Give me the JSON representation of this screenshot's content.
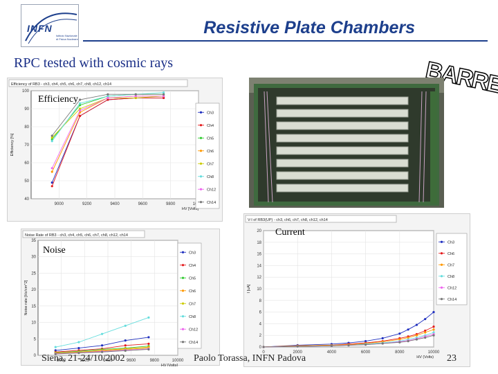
{
  "logo": {
    "text": "INFN",
    "subtext": "Istituto Nazionale di Fisica Nucleare"
  },
  "header": {
    "title": "Resistive Plate Chambers",
    "subtitle": "RPC tested with cosmic rays",
    "badge": "BARREL"
  },
  "labels": {
    "efficiency": "Efficiency",
    "noise": "Noise",
    "current": "Current"
  },
  "footer": {
    "left": "Siena, 21-24/10/2002",
    "center": "Paolo Torassa, INFN Padova",
    "page": "23"
  },
  "colors": {
    "title": "#1d3f8c",
    "subtitle": "#1a2f87"
  },
  "photo": {
    "icon": "rpc-chamber-stack-photo"
  },
  "chart_data": [
    {
      "type": "line",
      "title": "Efficiency of RB3 - ch3, ch4, ch5, ch6, ch7, ch8, ch12, ch14",
      "xlabel": "HV [Volts]",
      "ylabel": "Efficiency [%]",
      "xlim": [
        8800,
        10000
      ],
      "ylim": [
        40,
        100
      ],
      "xticks": [
        9000,
        9200,
        9400,
        9600,
        9800,
        10000
      ],
      "yticks": [
        40,
        50,
        60,
        70,
        80,
        90,
        100
      ],
      "x": [
        8950,
        9150,
        9350,
        9550,
        9750
      ],
      "series": [
        {
          "name": "Ch3",
          "color": "#1f2fbf",
          "values": [
            49,
            86,
            95,
            96,
            96
          ]
        },
        {
          "name": "Ch4",
          "color": "#e41a1c",
          "values": [
            47,
            86,
            95,
            96,
            96
          ]
        },
        {
          "name": "Ch5",
          "color": "#33cc33",
          "values": [
            73,
            92,
            97,
            98,
            98
          ]
        },
        {
          "name": "Ch6",
          "color": "#ff9900",
          "values": [
            55,
            88,
            96,
            97,
            97
          ]
        },
        {
          "name": "Ch7",
          "color": "#cccc00",
          "values": [
            74,
            90,
            96,
            96,
            97
          ]
        },
        {
          "name": "Ch8",
          "color": "#66dddd",
          "values": [
            72,
            93,
            97,
            98,
            99
          ]
        },
        {
          "name": "Ch12",
          "color": "#ee66ee",
          "values": [
            57,
            89,
            96,
            97,
            97
          ]
        },
        {
          "name": "Ch14",
          "color": "#777777",
          "values": [
            75,
            95,
            98,
            98,
            98
          ]
        }
      ]
    },
    {
      "type": "line",
      "title": "Noise Rate of RB3 - ch3, ch4, ch5, ch6, ch7, ch8, ch12, ch14",
      "xlabel": "HV [Volts]",
      "ylabel": "Noise rate [Hz/cm^2]",
      "xlim": [
        8800,
        10000
      ],
      "ylim": [
        0,
        35
      ],
      "xticks": [
        9000,
        9200,
        9400,
        9600,
        9800,
        10000
      ],
      "yticks": [
        0,
        5,
        10,
        15,
        20,
        25,
        30,
        35
      ],
      "x": [
        8950,
        9150,
        9350,
        9550,
        9750
      ],
      "series": [
        {
          "name": "Ch3",
          "color": "#1f2fbf",
          "values": [
            1.5,
            2.2,
            3.0,
            4.5,
            5.5
          ]
        },
        {
          "name": "Ch4",
          "color": "#e41a1c",
          "values": [
            1.0,
            1.5,
            2.0,
            3.0,
            3.5
          ]
        },
        {
          "name": "Ch5",
          "color": "#33cc33",
          "values": [
            0.8,
            1.2,
            1.8,
            2.2,
            2.8
          ]
        },
        {
          "name": "Ch6",
          "color": "#ff9900",
          "values": [
            0.7,
            1.0,
            1.5,
            2.0,
            2.5
          ]
        },
        {
          "name": "Ch7",
          "color": "#cccc00",
          "values": [
            0.6,
            0.9,
            1.3,
            1.8,
            2.2
          ]
        },
        {
          "name": "Ch8",
          "color": "#66dddd",
          "values": [
            2.5,
            4.0,
            6.5,
            9.0,
            11.5
          ]
        },
        {
          "name": "Ch12",
          "color": "#ee66ee",
          "values": [
            0.5,
            0.8,
            1.2,
            1.6,
            2.0
          ]
        },
        {
          "name": "Ch14",
          "color": "#777777",
          "values": [
            0.4,
            0.7,
            1.0,
            1.4,
            1.8
          ]
        }
      ]
    },
    {
      "type": "line",
      "title": "V-I of RB3(UP) - ch3, ch6, ch7, ch8, ch12, ch14",
      "xlabel": "HV (Volts)",
      "ylabel": "I [uA]",
      "xlim": [
        0,
        10000
      ],
      "ylim": [
        0,
        20
      ],
      "xticks": [
        0,
        2000,
        4000,
        6000,
        8000,
        10000
      ],
      "yticks": [
        0,
        2,
        4,
        6,
        8,
        10,
        12,
        14,
        16,
        18,
        20
      ],
      "x": [
        0,
        2000,
        4000,
        5000,
        6000,
        7000,
        8000,
        8500,
        9000,
        9500,
        10000
      ],
      "series": [
        {
          "name": "Ch3",
          "color": "#1f2fbf",
          "values": [
            0,
            0.3,
            0.5,
            0.7,
            1.0,
            1.5,
            2.3,
            3.0,
            3.8,
            4.8,
            6.0
          ]
        },
        {
          "name": "Ch6",
          "color": "#e41a1c",
          "values": [
            0,
            0.2,
            0.3,
            0.5,
            0.7,
            1.0,
            1.5,
            1.8,
            2.2,
            2.8,
            3.5
          ]
        },
        {
          "name": "Ch7",
          "color": "#ff9900",
          "values": [
            0,
            0.2,
            0.3,
            0.4,
            0.6,
            0.9,
            1.3,
            1.6,
            2.0,
            2.5,
            3.0
          ]
        },
        {
          "name": "Ch8",
          "color": "#66dddd",
          "values": [
            0,
            0.1,
            0.2,
            0.3,
            0.5,
            0.7,
            1.0,
            1.3,
            1.6,
            2.0,
            2.5
          ]
        },
        {
          "name": "Ch12",
          "color": "#ee66ee",
          "values": [
            0,
            0.1,
            0.2,
            0.3,
            0.4,
            0.6,
            0.9,
            1.1,
            1.4,
            1.8,
            2.2
          ]
        },
        {
          "name": "Ch14",
          "color": "#777777",
          "values": [
            0,
            0.1,
            0.2,
            0.3,
            0.4,
            0.6,
            0.8,
            1.0,
            1.3,
            1.6,
            2.0
          ]
        }
      ]
    }
  ]
}
